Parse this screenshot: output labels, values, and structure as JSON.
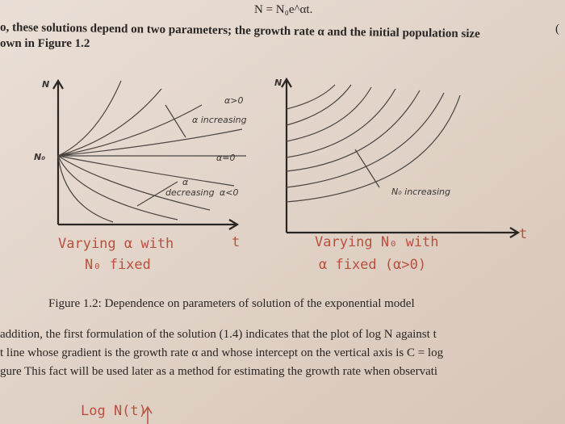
{
  "header": {
    "equation": "N = N₀e^αt.",
    "edge_mark": "(",
    "lines": [
      "o, these solutions depend on two parameters; the growth rate α and the initial population size",
      "own in Figure 1.2"
    ]
  },
  "figure": {
    "left": {
      "y_axis": "N",
      "start": "N₀",
      "alpha_pos": "α>0",
      "alpha_increasing": "α increasing",
      "alpha_zero": "α=0",
      "alpha_mark": "α",
      "decreasing": "decreasing",
      "alpha_neg": "α<0",
      "x_axis": "t",
      "note": [
        "Varying α with",
        "N₀ fixed"
      ]
    },
    "right": {
      "y_axis": "N",
      "n0_increasing": "N₀ increasing",
      "x_axis": "t",
      "note": [
        "Varying N₀ with",
        "α fixed (α>0)"
      ]
    },
    "caption": "Figure 1.2: Dependence on parameters of solution of the exponential model"
  },
  "body": {
    "lines": [
      "addition, the first formulation of the solution (1.4) indicates that the plot of log N against t",
      "t line whose gradient is the growth rate α and whose intercept on the vertical axis is C = log",
      "gure This fact will be used later as a method for estimating the growth rate when observati"
    ],
    "next_label": "Log N(t)"
  }
}
